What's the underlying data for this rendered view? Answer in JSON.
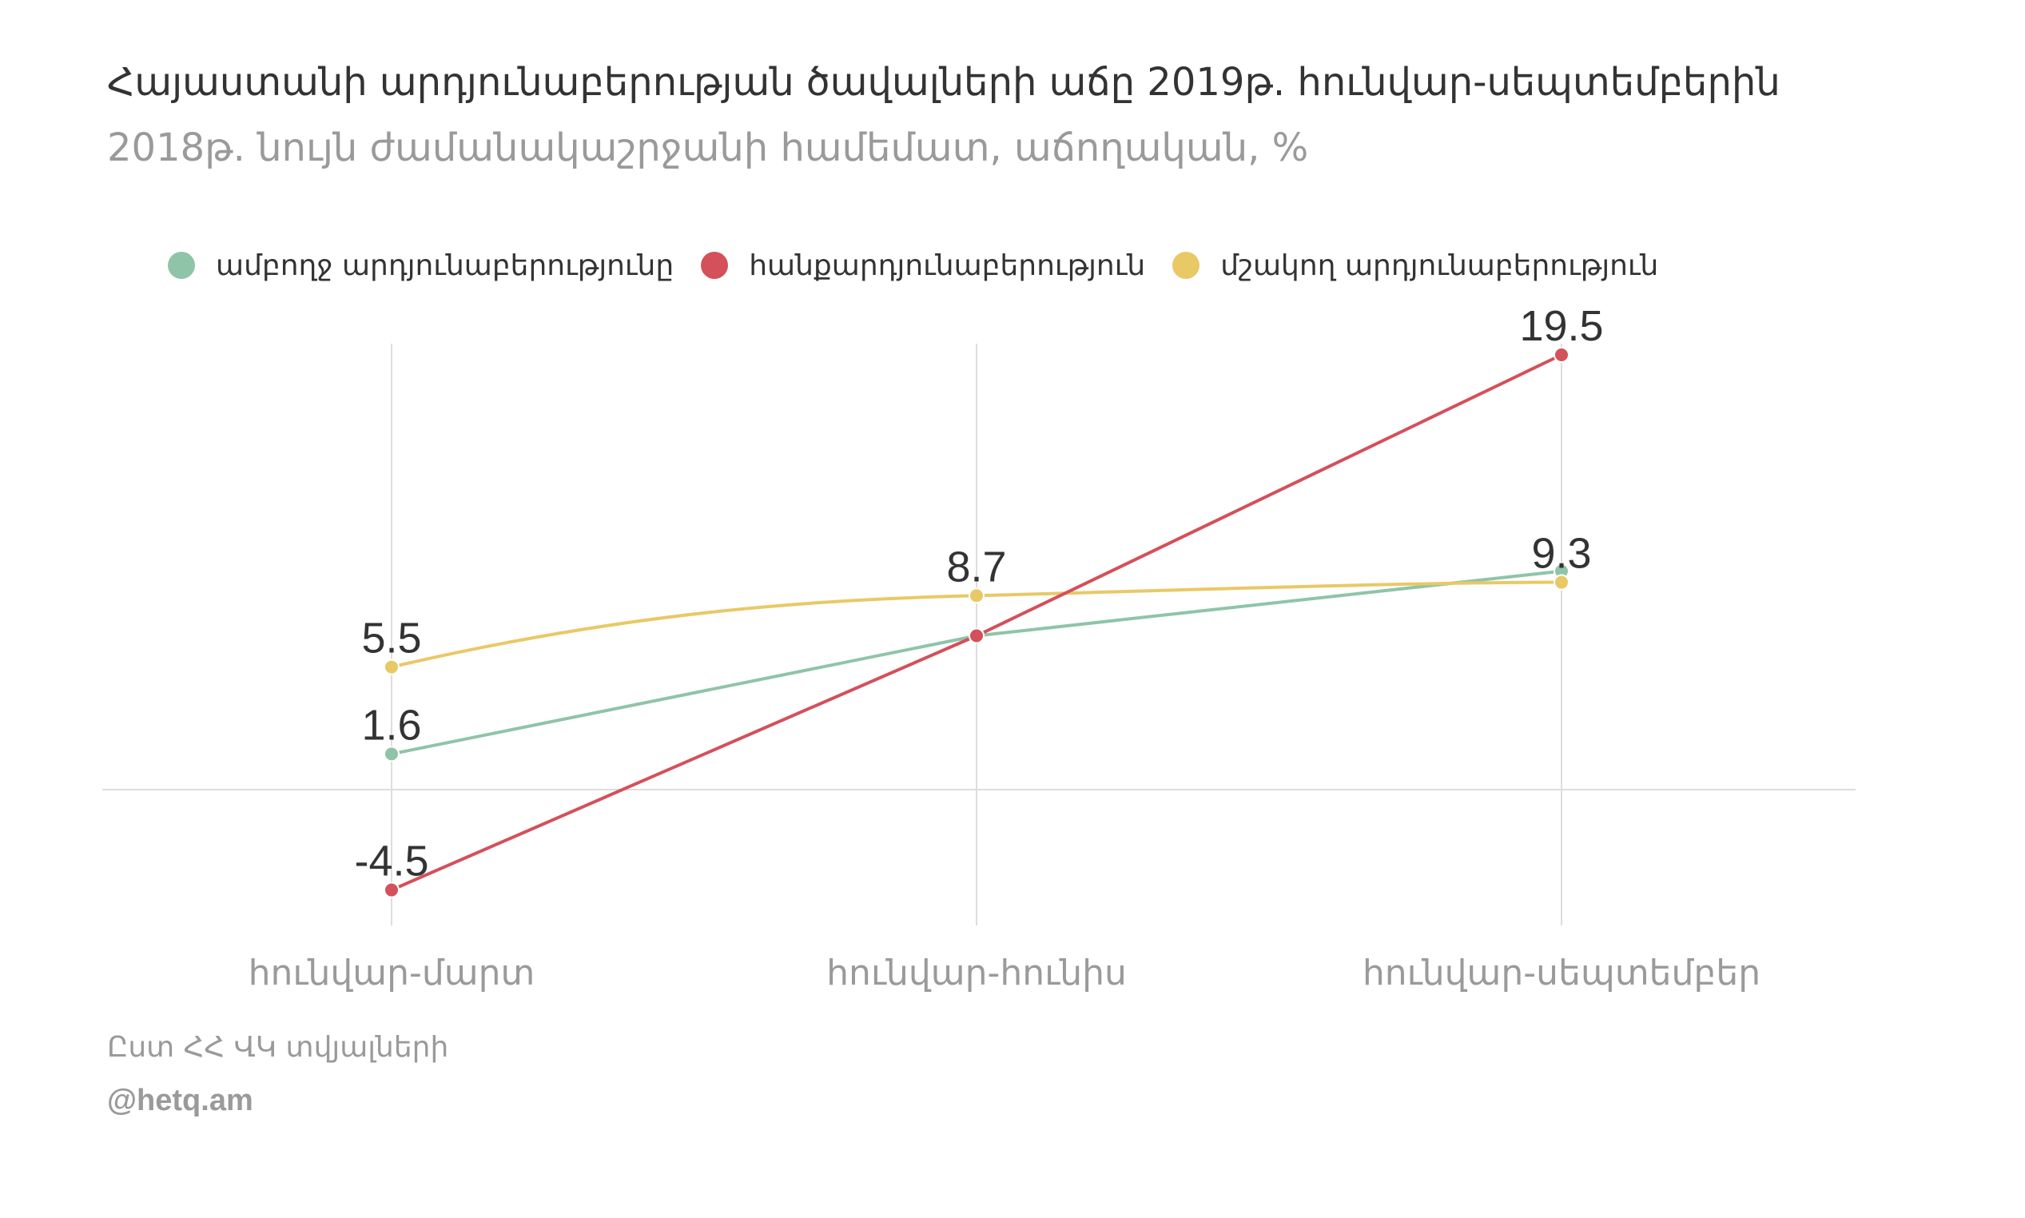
{
  "title_line1": "Հայաստանի արդյունաբերության ծավալների աճը 2019թ. հունվար-սեպտեմբերին",
  "title_line2": "2018թ. նույն ժամանակաշրջանի համեմատ, աճողական, %",
  "source": "Ըստ ՀՀ ՎԿ տվյալների",
  "credit": "@hetq.am",
  "colors": {
    "total": "#8fc4a8",
    "mining": "#d4505a",
    "manufacturing": "#e9c866",
    "grid": "#dddddd",
    "axis_label": "#9a9a9a",
    "text": "#333333"
  },
  "chart_data": {
    "type": "line",
    "title": "Հայաստանի արդյունաբերության ծավալների աճը 2019թ. հունվար-սեպտեմբերին",
    "subtitle": "2018թ. նույն ժամանակաշրջանի համեմատ, աճողական, %",
    "categories": [
      "հունվար-մարտ",
      "հունվար-հունիս",
      "հունվար-սեպտեմբեր"
    ],
    "series": [
      {
        "name": "ամբողջ արդյունաբերությունը",
        "color": "#8fc4a8",
        "values": [
          1.6,
          6.9,
          9.8
        ],
        "labels": [
          "1.6",
          "",
          ""
        ]
      },
      {
        "name": "հանքարդյունաբերություն",
        "color": "#d4505a",
        "values": [
          -4.5,
          6.9,
          19.5
        ],
        "labels": [
          "-4.5",
          "",
          "19.5"
        ]
      },
      {
        "name": "մշակող արդյունաբերություն",
        "color": "#e9c866",
        "values": [
          5.5,
          8.7,
          9.3
        ],
        "labels": [
          "5.5",
          "8.7",
          "9.3"
        ]
      }
    ],
    "ylim": [
      -6.5,
      21
    ],
    "grid": "vertical",
    "legend": "top"
  }
}
